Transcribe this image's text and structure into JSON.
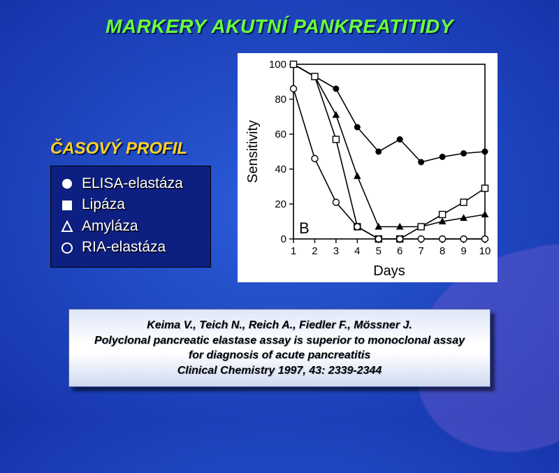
{
  "title": "MARKERY AKUTNÍ PANKREATITIDY",
  "subtitle": "ČASOVÝ PROFIL",
  "legend": {
    "items": [
      {
        "label": "ELISA-elastáza",
        "marker": "circle-filled"
      },
      {
        "label": "Lipáza",
        "marker": "square-outline"
      },
      {
        "label": "Amyláza",
        "marker": "triangle-outline"
      },
      {
        "label": "RIA-elastáza",
        "marker": "circle-outline"
      }
    ]
  },
  "chart": {
    "type": "line",
    "panel_label": "B",
    "xlabel": "Days",
    "ylabel": "Sensitivity",
    "xlim": [
      1,
      10
    ],
    "xticks": [
      1,
      2,
      3,
      4,
      5,
      6,
      7,
      8,
      9,
      10
    ],
    "ylim": [
      0,
      100
    ],
    "yticks": [
      0,
      20,
      40,
      60,
      80,
      100
    ],
    "background_color": "#ffffff",
    "axis_color": "#000000",
    "line_color": "#000000",
    "line_width": 1.6,
    "marker_size": 7,
    "label_fontsize": 18,
    "tick_fontsize": 15,
    "series": [
      {
        "name": "ELISA-elastáza",
        "marker": "circle-filled",
        "x": [
          1,
          2,
          3,
          4,
          5,
          6,
          7,
          8,
          9,
          10
        ],
        "y": [
          100,
          93,
          86,
          64,
          50,
          57,
          44,
          47,
          49,
          50
        ]
      },
      {
        "name": "Amyláza",
        "marker": "triangle-outline",
        "x": [
          1,
          2,
          3,
          4,
          5,
          6,
          7,
          8,
          9,
          10
        ],
        "y": [
          100,
          93,
          71,
          36,
          7,
          7,
          7,
          10,
          12,
          14
        ]
      },
      {
        "name": "Lipáza",
        "marker": "square-outline",
        "x": [
          1,
          2,
          3,
          4,
          5,
          6,
          7,
          8,
          9,
          10
        ],
        "y": [
          100,
          93,
          57,
          7,
          0,
          0,
          7,
          14,
          21,
          29
        ]
      },
      {
        "name": "RIA-elastáza",
        "marker": "circle-outline",
        "x": [
          1,
          2,
          3,
          4,
          5,
          6,
          7,
          8,
          9,
          10
        ],
        "y": [
          86,
          46,
          21,
          7,
          0,
          0,
          0,
          0,
          0,
          0
        ]
      }
    ]
  },
  "citation": {
    "line1": "Keima V., Teich N., Reich A., Fiedler F., Mössner J.",
    "line2": "Polyclonal pancreatic elastase assay is superior to monoclonal assay",
    "line3": "for diagnosis of acute pancreatitis",
    "line4": "Clinical Chemistry 1997, 43: 2339-2344"
  }
}
